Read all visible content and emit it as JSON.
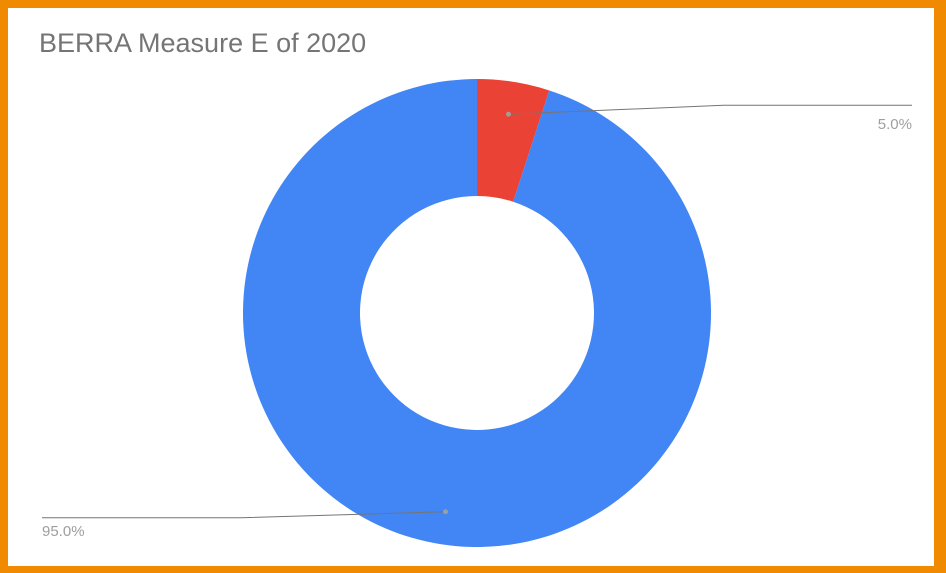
{
  "chart_data": {
    "type": "pie",
    "donut": true,
    "title": "BERRA Measure E of 2020",
    "slices": [
      {
        "value": 95.0,
        "label": "95.0%",
        "color": "#4285f4"
      },
      {
        "value": 5.0,
        "label": "5.0%",
        "color": "#ea4335"
      }
    ],
    "start_slice_index": 1,
    "direction": "clockwise",
    "legend": "none"
  },
  "colors": {
    "frame": "#f08a00",
    "background": "#ffffff",
    "title": "#757575",
    "label": "#9e9e9e",
    "leader": "#757575"
  }
}
